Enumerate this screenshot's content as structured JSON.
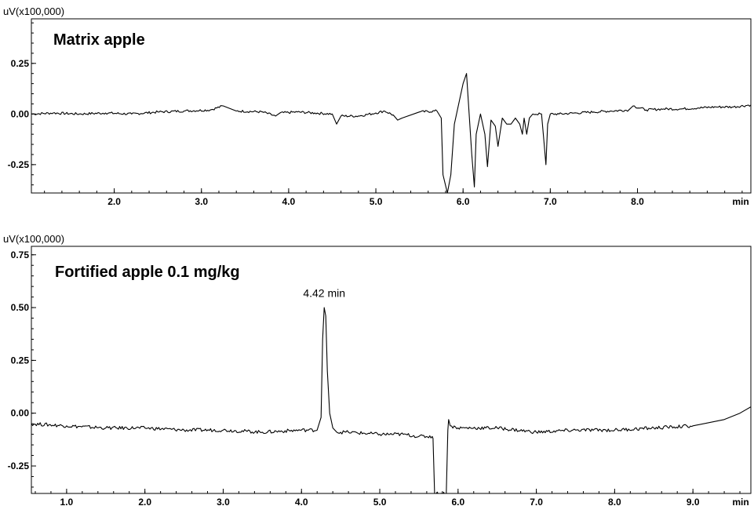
{
  "chart_data": [
    {
      "type": "line",
      "title": "Matrix apple",
      "y_unit_label": "uV(x100,000)",
      "x_unit_label": "min",
      "xlim": [
        1.05,
        9.3
      ],
      "ylim": [
        -0.39,
        0.47
      ],
      "x_ticks": [
        2.0,
        3.0,
        4.0,
        5.0,
        6.0,
        7.0,
        8.0
      ],
      "x_tick_labels": [
        "2.0",
        "3.0",
        "4.0",
        "5.0",
        "6.0",
        "7.0",
        "8.0"
      ],
      "y_ticks": [
        -0.25,
        0.0,
        0.25
      ],
      "y_tick_labels": [
        "-0.25",
        "0.00",
        "0.25"
      ],
      "grid": false,
      "annotations": [],
      "series": [
        {
          "x": [
            1.05,
            1.3,
            1.6,
            1.9,
            2.2,
            2.5,
            2.8,
            3.1,
            3.25,
            3.4,
            3.7,
            3.85,
            3.9,
            4.1,
            4.3,
            4.5,
            4.55,
            4.6,
            4.8,
            5.0,
            5.1,
            5.2,
            5.25,
            5.3,
            5.5,
            5.7,
            5.75,
            5.77,
            5.82,
            5.86,
            5.9,
            6.0,
            6.04,
            6.1,
            6.13,
            6.15,
            6.2,
            6.25,
            6.28,
            6.32,
            6.37,
            6.4,
            6.45,
            6.5,
            6.55,
            6.6,
            6.65,
            6.68,
            6.7,
            6.73,
            6.76,
            6.8,
            6.9,
            6.93,
            6.95,
            6.97,
            7.0,
            7.1,
            7.3,
            7.5,
            7.7,
            7.9,
            7.95,
            8.1,
            8.3,
            8.5,
            8.7,
            8.9,
            9.1,
            9.3
          ],
          "y": [
            0.0,
            0.005,
            0.0,
            0.005,
            0.0,
            0.01,
            0.015,
            0.02,
            0.04,
            0.015,
            0.01,
            -0.01,
            0.005,
            0.01,
            0.005,
            0.0,
            -0.05,
            -0.01,
            -0.01,
            0.005,
            0.015,
            -0.005,
            -0.03,
            -0.02,
            0.01,
            0.015,
            -0.02,
            -0.3,
            -0.39,
            -0.3,
            -0.05,
            0.15,
            0.2,
            -0.2,
            -0.36,
            -0.1,
            0.0,
            -0.1,
            -0.26,
            -0.03,
            -0.06,
            -0.16,
            -0.02,
            -0.05,
            -0.05,
            -0.02,
            -0.05,
            -0.1,
            -0.02,
            -0.1,
            -0.02,
            0.0,
            0.0,
            -0.15,
            -0.25,
            -0.05,
            0.0,
            0.0,
            0.005,
            0.01,
            0.015,
            0.02,
            0.04,
            0.02,
            0.025,
            0.025,
            0.03,
            0.035,
            0.035,
            0.045
          ]
        }
      ]
    },
    {
      "type": "line",
      "title": "Fortified apple 0.1 mg/kg",
      "y_unit_label": "uV(x100,000)",
      "x_unit_label": "min",
      "xlim": [
        0.55,
        9.74
      ],
      "ylim": [
        -0.38,
        0.79
      ],
      "x_ticks": [
        1.0,
        2.0,
        3.0,
        4.0,
        5.0,
        6.0,
        7.0,
        8.0,
        9.0
      ],
      "x_tick_labels": [
        "1.0",
        "2.0",
        "3.0",
        "4.0",
        "5.0",
        "6.0",
        "7.0",
        "8.0",
        "9.0"
      ],
      "y_ticks": [
        -0.25,
        0.0,
        0.25,
        0.5,
        0.75
      ],
      "y_tick_labels": [
        "-0.25",
        "0.00",
        "0.25",
        "0.50",
        "0.75"
      ],
      "grid": false,
      "annotations": [
        {
          "text": "4.42 min",
          "x": 4.29,
          "y": 0.55
        }
      ],
      "series": [
        {
          "x": [
            0.55,
            1.0,
            1.5,
            2.0,
            2.5,
            3.0,
            3.5,
            4.0,
            4.2,
            4.25,
            4.27,
            4.29,
            4.31,
            4.33,
            4.36,
            4.4,
            4.45,
            4.6,
            5.0,
            5.3,
            5.5,
            5.67,
            5.68,
            5.7,
            5.85,
            5.87,
            5.88,
            5.9,
            6.0,
            6.5,
            7.0,
            7.5,
            8.0,
            8.5,
            9.0,
            9.4,
            9.6,
            9.74
          ],
          "y": [
            -0.05,
            -0.06,
            -0.07,
            -0.07,
            -0.08,
            -0.08,
            -0.09,
            -0.08,
            -0.08,
            -0.02,
            0.35,
            0.5,
            0.46,
            0.2,
            0.0,
            -0.07,
            -0.09,
            -0.09,
            -0.1,
            -0.1,
            -0.11,
            -0.11,
            -0.12,
            -0.38,
            -0.38,
            -0.08,
            -0.03,
            -0.06,
            -0.07,
            -0.07,
            -0.09,
            -0.08,
            -0.08,
            -0.07,
            -0.06,
            -0.03,
            0.0,
            0.03
          ]
        }
      ]
    }
  ]
}
